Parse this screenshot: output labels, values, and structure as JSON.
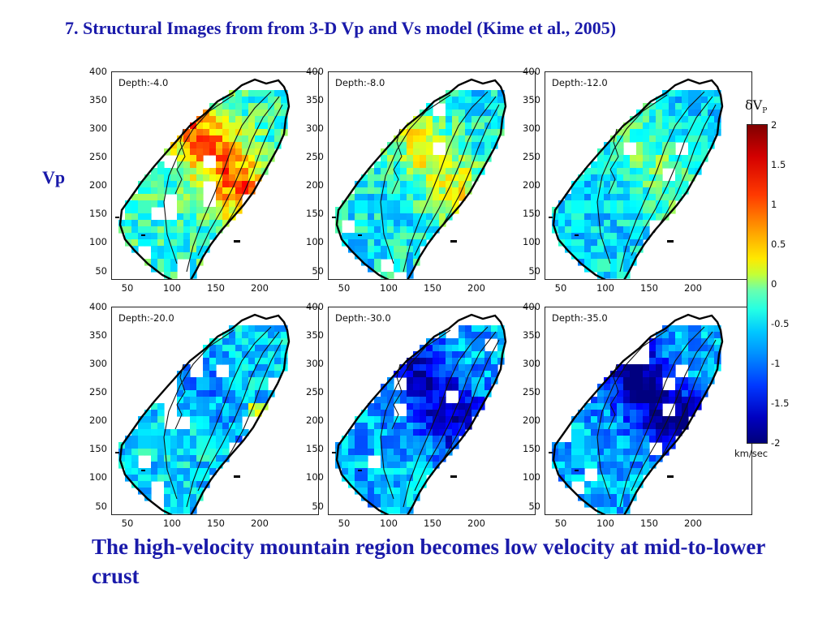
{
  "title": "7.  Structural Images from from 3-D Vp and Vs model (Kime et al., 2005)",
  "row_label": "Vp",
  "panels": [
    {
      "depth_label": "Depth:-4.0",
      "variant": 0
    },
    {
      "depth_label": "Depth:-8.0",
      "variant": 1
    },
    {
      "depth_label": "Depth:-12.0",
      "variant": 2
    },
    {
      "depth_label": "Depth:-20.0",
      "variant": 3
    },
    {
      "depth_label": "Depth:-30.0",
      "variant": 4
    },
    {
      "depth_label": "Depth:-35.0",
      "variant": 5
    }
  ],
  "y_ticks": [
    "400",
    "350",
    "300",
    "250",
    "200",
    "150",
    "100",
    "50"
  ],
  "x_ticks": [
    "50",
    "100",
    "150",
    "200"
  ],
  "colorbar": {
    "title_symbol": "δV",
    "title_sub": "P",
    "ticks": [
      "2",
      "1.5",
      "1",
      "0.5",
      "0",
      "-0.5",
      "-1",
      "-1.5",
      "-2"
    ],
    "unit": "km/sec",
    "range": [
      -2,
      2
    ]
  },
  "caption": "The high-velocity mountain region becomes low velocity at mid-to-lower crust"
}
